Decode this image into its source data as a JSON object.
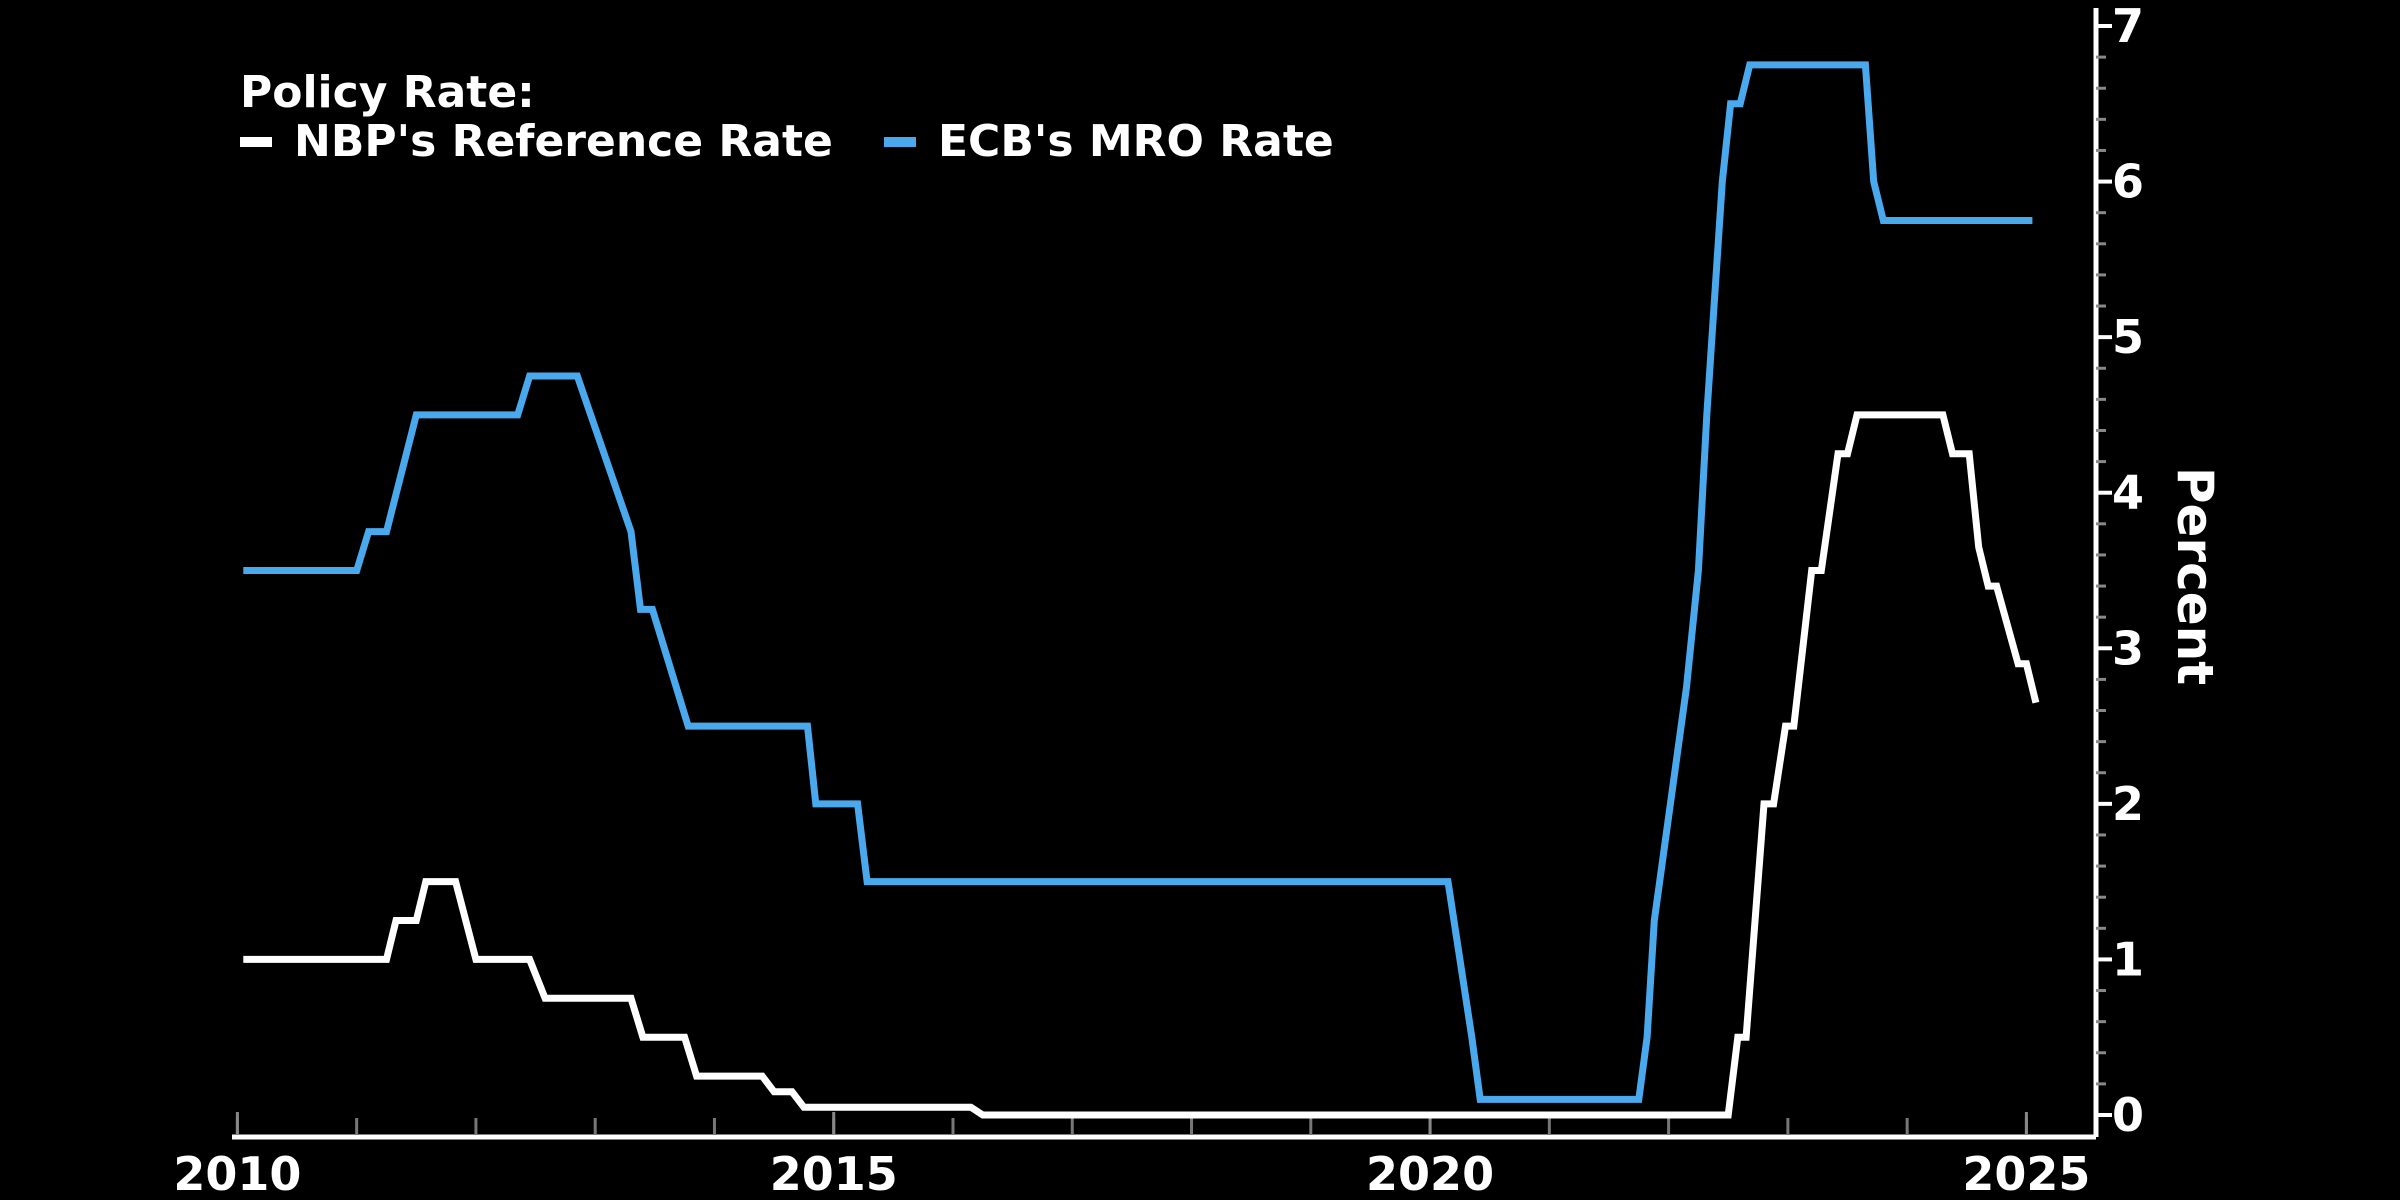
{
  "chart_data": {
    "type": "line",
    "title": "",
    "legend": {
      "heading": "Policy Rate:",
      "placement": "top-left"
    },
    "xlabel": "",
    "ylabel": "Percent",
    "xlim": [
      2009.98,
      2025.55
    ],
    "ylim": [
      0,
      7
    ],
    "x_ticks": [
      2010,
      2015,
      2020,
      2025
    ],
    "y_ticks": [
      0,
      1,
      2,
      3,
      4,
      5,
      6,
      7
    ],
    "y_axis_position": "right",
    "grid": false,
    "background": "#000000",
    "series": [
      {
        "name": "NBP's Reference Rate",
        "color": "#ffffff",
        "points": [
          [
            2010.05,
            1.0
          ],
          [
            2011.25,
            1.0
          ],
          [
            2011.33,
            1.25
          ],
          [
            2011.5,
            1.25
          ],
          [
            2011.58,
            1.5
          ],
          [
            2011.83,
            1.5
          ],
          [
            2012.0,
            1.0
          ],
          [
            2012.45,
            1.0
          ],
          [
            2012.58,
            0.75
          ],
          [
            2013.3,
            0.75
          ],
          [
            2013.4,
            0.5
          ],
          [
            2013.75,
            0.5
          ],
          [
            2013.85,
            0.25
          ],
          [
            2014.4,
            0.25
          ],
          [
            2014.5,
            0.15
          ],
          [
            2014.65,
            0.15
          ],
          [
            2014.75,
            0.05
          ],
          [
            2016.15,
            0.05
          ],
          [
            2016.25,
            0.0
          ],
          [
            2022.5,
            0.0
          ],
          [
            2022.58,
            0.5
          ],
          [
            2022.65,
            0.5
          ],
          [
            2022.8,
            2.0
          ],
          [
            2022.88,
            2.0
          ],
          [
            2022.98,
            2.5
          ],
          [
            2023.05,
            2.5
          ],
          [
            2023.2,
            3.5
          ],
          [
            2023.28,
            3.5
          ],
          [
            2023.42,
            4.25
          ],
          [
            2023.5,
            4.25
          ],
          [
            2023.58,
            4.5
          ],
          [
            2024.3,
            4.5
          ],
          [
            2024.38,
            4.25
          ],
          [
            2024.52,
            4.25
          ],
          [
            2024.6,
            3.65
          ],
          [
            2024.68,
            3.4
          ],
          [
            2024.75,
            3.4
          ],
          [
            2024.93,
            2.9
          ],
          [
            2025.0,
            2.9
          ],
          [
            2025.08,
            2.65
          ]
        ]
      },
      {
        "name": "ECB's MRO Rate",
        "color": "#4aa8ec",
        "points": [
          [
            2010.05,
            3.5
          ],
          [
            2011.0,
            3.5
          ],
          [
            2011.1,
            3.75
          ],
          [
            2011.25,
            3.75
          ],
          [
            2011.5,
            4.5
          ],
          [
            2012.35,
            4.5
          ],
          [
            2012.45,
            4.75
          ],
          [
            2012.85,
            4.75
          ],
          [
            2013.3,
            3.75
          ],
          [
            2013.38,
            3.25
          ],
          [
            2013.48,
            3.25
          ],
          [
            2013.78,
            2.5
          ],
          [
            2014.78,
            2.5
          ],
          [
            2014.85,
            2.0
          ],
          [
            2015.2,
            2.0
          ],
          [
            2015.28,
            1.5
          ],
          [
            2020.15,
            1.5
          ],
          [
            2020.35,
            0.5
          ],
          [
            2020.42,
            0.1
          ],
          [
            2021.75,
            0.1
          ],
          [
            2021.82,
            0.5
          ],
          [
            2021.88,
            1.25
          ],
          [
            2022.15,
            2.75
          ],
          [
            2022.25,
            3.5
          ],
          [
            2022.32,
            4.5
          ],
          [
            2022.45,
            6.0
          ],
          [
            2022.52,
            6.5
          ],
          [
            2022.6,
            6.5
          ],
          [
            2022.68,
            6.75
          ],
          [
            2023.65,
            6.75
          ],
          [
            2023.72,
            6.0
          ],
          [
            2023.8,
            5.75
          ],
          [
            2025.05,
            5.75
          ]
        ]
      }
    ]
  }
}
